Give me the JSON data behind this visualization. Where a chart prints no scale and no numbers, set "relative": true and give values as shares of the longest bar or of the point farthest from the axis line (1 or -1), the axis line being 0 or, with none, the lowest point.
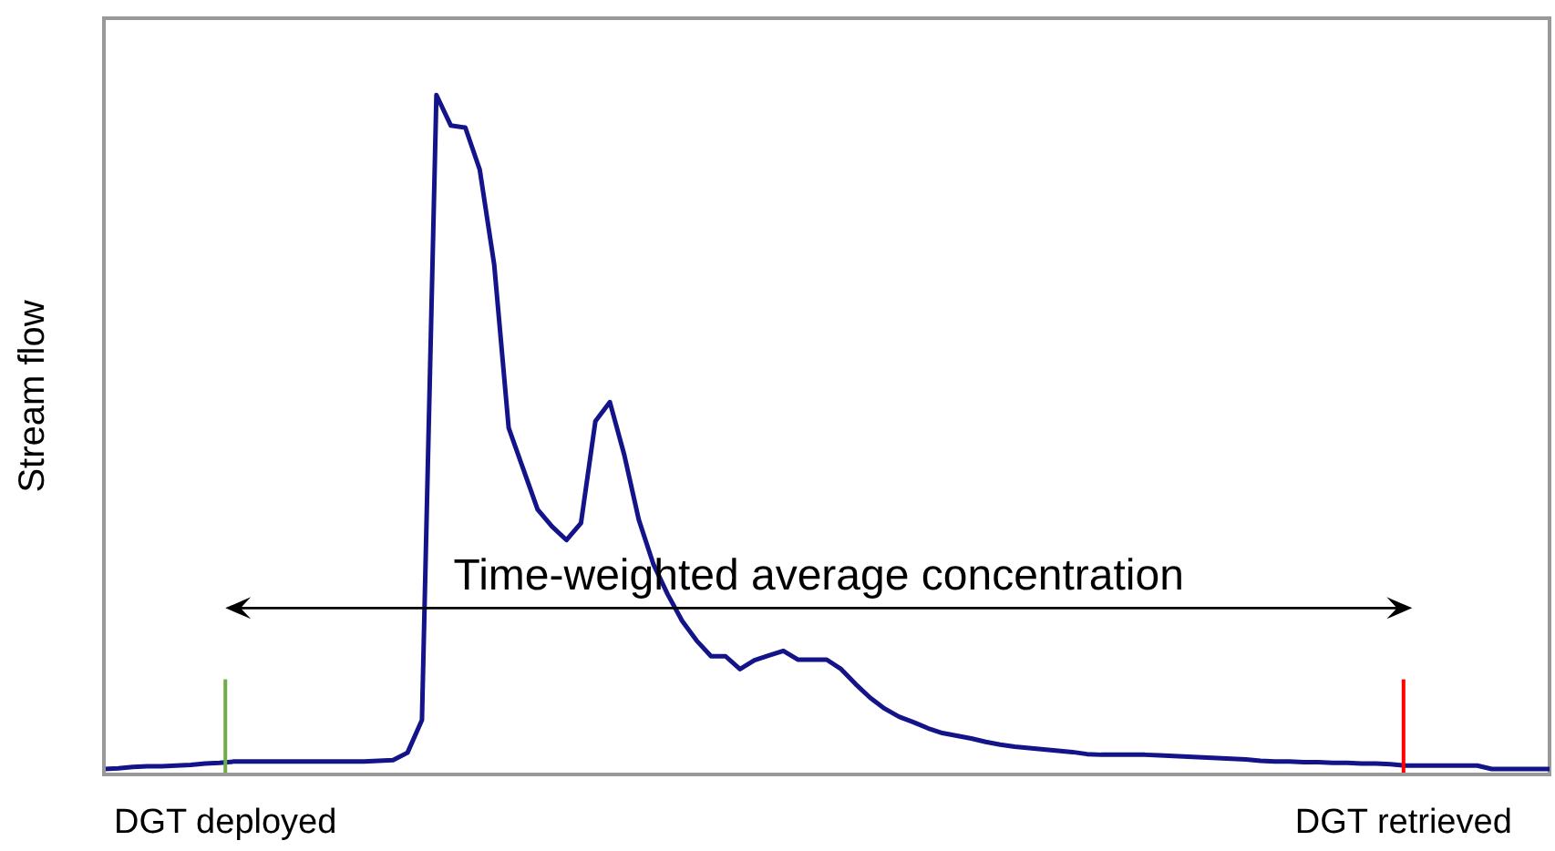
{
  "chart_data": {
    "type": "line",
    "relative": true,
    "ylabel": "Stream flow",
    "line_style": "solid",
    "categories": [
      null,
      null,
      null,
      null,
      null,
      null,
      null,
      null,
      null,
      null,
      null,
      null,
      null,
      null,
      null,
      null,
      null,
      null,
      null,
      null,
      null,
      null,
      null,
      null,
      null,
      null,
      null,
      null,
      null,
      null,
      null,
      null,
      null,
      null,
      null,
      null,
      null,
      null,
      null,
      null,
      null,
      null,
      null,
      null,
      null,
      null,
      null,
      null,
      null,
      null,
      null,
      null,
      null,
      null,
      null,
      null,
      null,
      null,
      null,
      null,
      null,
      null,
      null,
      null,
      null,
      null,
      null,
      null,
      null,
      null,
      null,
      null,
      null,
      null,
      null,
      null,
      null,
      null,
      null,
      null,
      null,
      null,
      null,
      null,
      null,
      null,
      null,
      null,
      null,
      null,
      null,
      null,
      null,
      null,
      null,
      null,
      null,
      null,
      null,
      null,
      null
    ],
    "series": [
      {
        "color": "#14148a",
        "values": [
          0.008,
          0.009,
          0.011,
          0.012,
          0.012,
          0.013,
          0.014,
          0.016,
          0.017,
          0.019,
          0.019,
          0.019,
          0.019,
          0.019,
          0.019,
          0.019,
          0.019,
          0.019,
          0.019,
          0.02,
          0.021,
          0.032,
          0.08,
          1,
          0.955,
          0.952,
          0.89,
          0.75,
          0.51,
          0.45,
          0.39,
          0.365,
          0.345,
          0.37,
          0.52,
          0.548,
          0.47,
          0.375,
          0.31,
          0.265,
          0.226,
          0.197,
          0.174,
          0.174,
          0.155,
          0.168,
          0.175,
          0.182,
          0.169,
          0.169,
          0.169,
          0.155,
          0.133,
          0.113,
          0.097,
          0.085,
          0.077,
          0.068,
          0.061,
          0.057,
          0.053,
          0.048,
          0.044,
          0.041,
          0.039,
          0.037,
          0.035,
          0.033,
          0.03,
          0.029,
          0.029,
          0.029,
          0.029,
          0.028,
          0.027,
          0.026,
          0.025,
          0.024,
          0.023,
          0.022,
          0.02,
          0.019,
          0.019,
          0.018,
          0.018,
          0.017,
          0.017,
          0.016,
          0.016,
          0.015,
          0.013,
          0.013,
          0.013,
          0.013,
          0.013,
          0.013,
          0.008,
          0.008,
          0.008,
          0.008,
          0.008
        ]
      }
    ],
    "annotations": [
      "Time-weighted average concentration",
      "DGT deployed",
      "DGT retrieved"
    ]
  }
}
